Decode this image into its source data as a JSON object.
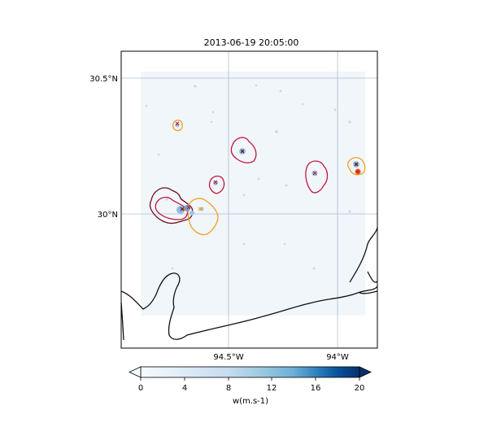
{
  "title": "2013-06-19 20:05:00",
  "map": {
    "lat_labels": [
      "30.5°N",
      "30°N"
    ],
    "lon_labels": [
      "94.5°W",
      "94°W"
    ],
    "gridlines": true
  },
  "colorbar": {
    "label": "w(m.s-1)",
    "ticks": [
      "0",
      "4",
      "8",
      "12",
      "16",
      "20"
    ],
    "min": 0,
    "max": 20,
    "colormap": "Blues",
    "color_low": "#f7fbff",
    "color_high": "#08306b"
  },
  "contour_colors": {
    "dark_red": "#6b0f1a",
    "crimson": "#c4153a",
    "orange": "#f0a020"
  },
  "icons": {
    "cell_marker": "x-marker-icon"
  }
}
